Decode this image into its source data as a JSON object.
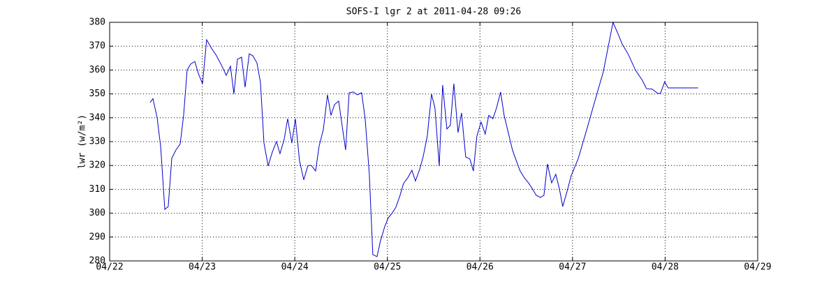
{
  "chart_data": {
    "type": "line",
    "title": "SOFS-I lgr 2 at 2011-04-28 09:26",
    "ylabel": "lwr (w/m²)",
    "color": "#0000cc",
    "grid": true,
    "xlim": [
      0,
      7
    ],
    "xticks": [
      {
        "value": 0,
        "label": "04/22"
      },
      {
        "value": 1,
        "label": "04/23"
      },
      {
        "value": 2,
        "label": "04/24"
      },
      {
        "value": 3,
        "label": "04/25"
      },
      {
        "value": 4,
        "label": "04/26"
      },
      {
        "value": 5,
        "label": "04/27"
      },
      {
        "value": 6,
        "label": "04/28"
      },
      {
        "value": 7,
        "label": "04/29"
      }
    ],
    "ylim": [
      280,
      380
    ],
    "yticks": [
      280,
      290,
      300,
      310,
      320,
      330,
      340,
      350,
      360,
      370,
      380
    ],
    "x": [
      0.437,
      0.468,
      0.513,
      0.551,
      0.596,
      0.633,
      0.671,
      0.716,
      0.762,
      0.799,
      0.837,
      0.875,
      0.92,
      0.958,
      1.003,
      1.048,
      1.094,
      1.154,
      1.214,
      1.259,
      1.305,
      1.342,
      1.38,
      1.425,
      1.463,
      1.508,
      1.546,
      1.591,
      1.629,
      1.667,
      1.712,
      1.757,
      1.802,
      1.84,
      1.885,
      1.923,
      1.968,
      2.006,
      2.051,
      2.097,
      2.142,
      2.179,
      2.225,
      2.262,
      2.308,
      2.353,
      2.391,
      2.428,
      2.474,
      2.511,
      2.549,
      2.587,
      2.632,
      2.677,
      2.722,
      2.76,
      2.805,
      2.843,
      2.888,
      2.926,
      2.971,
      3.009,
      3.054,
      3.092,
      3.137,
      3.175,
      3.22,
      3.265,
      3.303,
      3.348,
      3.386,
      3.431,
      3.477,
      3.514,
      3.56,
      3.597,
      3.643,
      3.68,
      3.718,
      3.763,
      3.801,
      3.846,
      3.891,
      3.929,
      3.967,
      4.012,
      4.057,
      4.095,
      4.14,
      4.178,
      4.223,
      4.261,
      4.306,
      4.351,
      4.397,
      4.434,
      4.48,
      4.525,
      4.563,
      4.608,
      4.653,
      4.691,
      4.729,
      4.774,
      4.819,
      4.857,
      4.894,
      4.94,
      4.985,
      5.06,
      5.151,
      5.241,
      5.332,
      5.437,
      5.49,
      5.535,
      5.603,
      5.679,
      5.754,
      5.799,
      5.86,
      5.92,
      5.95,
      5.995,
      6.033,
      6.357
    ],
    "values": [
      346.4,
      348,
      340,
      328,
      301.6,
      302.8,
      323,
      326.5,
      329,
      341,
      360,
      362.5,
      363.6,
      358.6,
      354.3,
      372.7,
      369.5,
      366,
      361.6,
      357.8,
      361.6,
      350,
      364.5,
      365.4,
      352.8,
      366.8,
      366,
      363,
      354.8,
      329.4,
      319.8,
      325.6,
      330,
      325,
      330.9,
      339.6,
      329.4,
      339.6,
      322,
      314,
      320,
      320,
      317.7,
      328,
      335,
      349.6,
      341,
      345.5,
      347,
      336.7,
      326.5,
      350.5,
      350.8,
      349.6,
      350.5,
      339.6,
      316.3,
      282.6,
      281.8,
      288.5,
      294.3,
      298,
      300.2,
      302.5,
      307.5,
      312.5,
      314.8,
      318,
      313.5,
      318.3,
      323.6,
      332.3,
      349.9,
      344,
      319.8,
      353.7,
      335.3,
      336.8,
      354.3,
      333.8,
      342,
      323.6,
      322.7,
      317.7,
      332.3,
      338.2,
      333.2,
      341,
      339.6,
      344,
      350.8,
      341,
      333.8,
      326.5,
      321.5,
      317.7,
      314.8,
      312.7,
      310.4,
      307.5,
      306.6,
      307.5,
      320.6,
      312.7,
      316.3,
      310.4,
      302.8,
      309,
      315.7,
      322.7,
      334.7,
      347,
      359.2,
      380,
      375.3,
      371,
      366.5,
      360,
      355.7,
      352.2,
      352,
      350.2,
      350.2,
      355.1,
      352.5,
      352.5
    ]
  }
}
